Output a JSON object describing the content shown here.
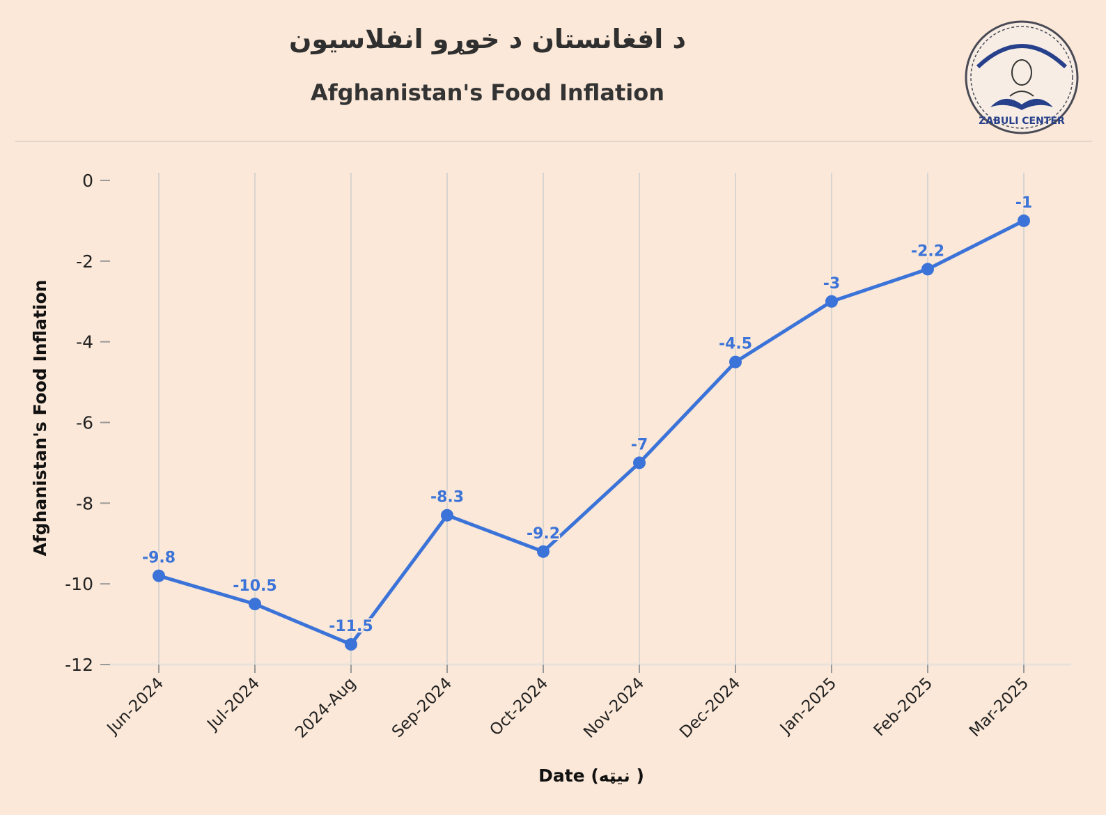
{
  "header": {
    "title_ps": "د افغانستان د خوړو انفلاسيون",
    "title_en": "Afghanistan's Food Inflation"
  },
  "logo": {
    "text": "ZABULI CENTER",
    "icon": "zabuli-center-seal"
  },
  "colors": {
    "background": "#fbe8d8",
    "series": "#3b73d8",
    "grid": "#d9d4d0"
  },
  "chart_data": {
    "type": "line",
    "title": "Afghanistan's Food Inflation",
    "xlabel": "Date (نیټه )",
    "ylabel": "Afghanistan's Food Inflation",
    "categories": [
      "Jun-2024",
      "Jul-2024",
      "2024-Aug",
      "Sep-2024",
      "Oct-2024",
      "Nov-2024",
      "Dec-2024",
      "Jan-2025",
      "Feb-2025",
      "Mar-2025"
    ],
    "series": [
      {
        "values": [
          -9.8,
          -10.5,
          -11.5,
          -8.3,
          -9.2,
          -7,
          -4.5,
          -3,
          -2.2,
          -1
        ],
        "labels": [
          "-9.8",
          "-10.5",
          "-11.5",
          "-8.3",
          "-9.2",
          "-7",
          "-4.5",
          "-3",
          "-2.2",
          "-1"
        ]
      }
    ],
    "ylim": [
      -12,
      0
    ],
    "yticks": [
      0,
      -2,
      -4,
      -6,
      -8,
      -10,
      -12
    ],
    "grid": "vertical",
    "legend": "none"
  }
}
